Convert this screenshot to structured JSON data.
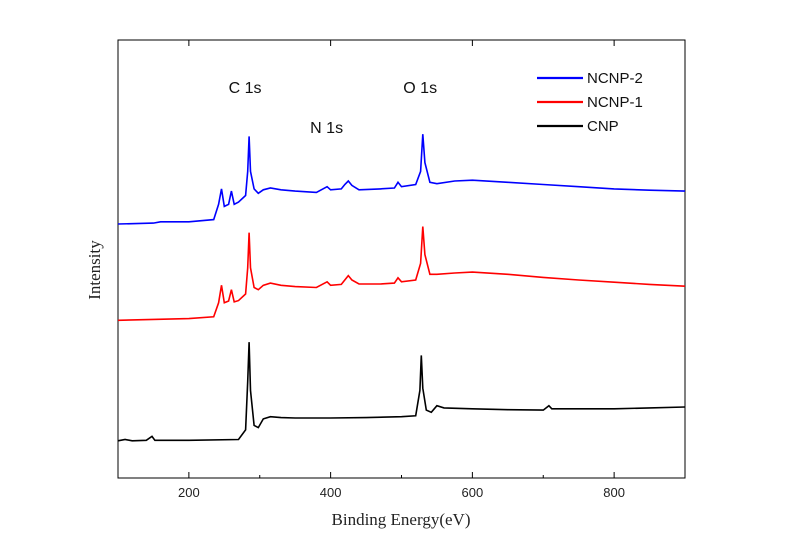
{
  "chart_data": {
    "type": "line",
    "title": "",
    "xlabel": "Binding Energy(eV)",
    "ylabel": "Intensity",
    "xlim": [
      100,
      900
    ],
    "ylim": [
      0,
      1
    ],
    "x_ticks": [
      200,
      400,
      600,
      800
    ],
    "y_ticks_shown": false,
    "grid": false,
    "legend_position": "top-right",
    "annotations": [
      {
        "text": "C 1s",
        "x": 285
      },
      {
        "text": "N 1s",
        "x": 400
      },
      {
        "text": "O 1s",
        "x": 532
      }
    ],
    "series": [
      {
        "name": "NCNP-2",
        "color": "#0000ff",
        "points": [
          [
            100,
            0.58
          ],
          [
            150,
            0.582
          ],
          [
            160,
            0.585
          ],
          [
            200,
            0.585
          ],
          [
            235,
            0.59
          ],
          [
            242,
            0.625
          ],
          [
            246,
            0.66
          ],
          [
            250,
            0.62
          ],
          [
            256,
            0.625
          ],
          [
            260,
            0.655
          ],
          [
            264,
            0.625
          ],
          [
            270,
            0.63
          ],
          [
            280,
            0.645
          ],
          [
            283,
            0.7
          ],
          [
            285,
            0.78
          ],
          [
            287,
            0.7
          ],
          [
            292,
            0.66
          ],
          [
            298,
            0.65
          ],
          [
            305,
            0.658
          ],
          [
            315,
            0.662
          ],
          [
            330,
            0.658
          ],
          [
            350,
            0.655
          ],
          [
            380,
            0.652
          ],
          [
            395,
            0.665
          ],
          [
            400,
            0.658
          ],
          [
            415,
            0.66
          ],
          [
            420,
            0.67
          ],
          [
            425,
            0.678
          ],
          [
            430,
            0.668
          ],
          [
            440,
            0.658
          ],
          [
            470,
            0.66
          ],
          [
            490,
            0.662
          ],
          [
            495,
            0.675
          ],
          [
            500,
            0.665
          ],
          [
            520,
            0.67
          ],
          [
            527,
            0.7
          ],
          [
            530,
            0.785
          ],
          [
            533,
            0.72
          ],
          [
            540,
            0.675
          ],
          [
            550,
            0.672
          ],
          [
            575,
            0.678
          ],
          [
            600,
            0.68
          ],
          [
            650,
            0.675
          ],
          [
            700,
            0.67
          ],
          [
            750,
            0.665
          ],
          [
            800,
            0.66
          ],
          [
            850,
            0.657
          ],
          [
            900,
            0.655
          ]
        ]
      },
      {
        "name": "NCNP-1",
        "color": "#ff0000",
        "points": [
          [
            100,
            0.36
          ],
          [
            150,
            0.362
          ],
          [
            200,
            0.364
          ],
          [
            235,
            0.368
          ],
          [
            242,
            0.4
          ],
          [
            246,
            0.44
          ],
          [
            250,
            0.4
          ],
          [
            256,
            0.404
          ],
          [
            260,
            0.43
          ],
          [
            264,
            0.402
          ],
          [
            270,
            0.405
          ],
          [
            280,
            0.42
          ],
          [
            283,
            0.48
          ],
          [
            285,
            0.56
          ],
          [
            287,
            0.48
          ],
          [
            292,
            0.435
          ],
          [
            298,
            0.43
          ],
          [
            305,
            0.44
          ],
          [
            315,
            0.445
          ],
          [
            330,
            0.44
          ],
          [
            350,
            0.437
          ],
          [
            380,
            0.435
          ],
          [
            395,
            0.448
          ],
          [
            400,
            0.44
          ],
          [
            415,
            0.442
          ],
          [
            420,
            0.452
          ],
          [
            425,
            0.462
          ],
          [
            430,
            0.452
          ],
          [
            440,
            0.443
          ],
          [
            470,
            0.443
          ],
          [
            490,
            0.445
          ],
          [
            495,
            0.457
          ],
          [
            500,
            0.448
          ],
          [
            520,
            0.452
          ],
          [
            527,
            0.49
          ],
          [
            530,
            0.574
          ],
          [
            533,
            0.51
          ],
          [
            540,
            0.465
          ],
          [
            550,
            0.465
          ],
          [
            575,
            0.468
          ],
          [
            600,
            0.47
          ],
          [
            650,
            0.465
          ],
          [
            700,
            0.458
          ],
          [
            750,
            0.452
          ],
          [
            800,
            0.447
          ],
          [
            850,
            0.442
          ],
          [
            900,
            0.438
          ]
        ]
      },
      {
        "name": "CNP",
        "color": "#000000",
        "points": [
          [
            100,
            0.085
          ],
          [
            110,
            0.088
          ],
          [
            120,
            0.085
          ],
          [
            140,
            0.086
          ],
          [
            148,
            0.095
          ],
          [
            152,
            0.086
          ],
          [
            200,
            0.086
          ],
          [
            270,
            0.088
          ],
          [
            280,
            0.11
          ],
          [
            283,
            0.22
          ],
          [
            285,
            0.31
          ],
          [
            287,
            0.2
          ],
          [
            292,
            0.12
          ],
          [
            298,
            0.115
          ],
          [
            305,
            0.135
          ],
          [
            315,
            0.14
          ],
          [
            330,
            0.138
          ],
          [
            350,
            0.137
          ],
          [
            400,
            0.137
          ],
          [
            450,
            0.138
          ],
          [
            500,
            0.14
          ],
          [
            520,
            0.142
          ],
          [
            526,
            0.2
          ],
          [
            528,
            0.28
          ],
          [
            530,
            0.205
          ],
          [
            535,
            0.155
          ],
          [
            542,
            0.15
          ],
          [
            550,
            0.165
          ],
          [
            560,
            0.16
          ],
          [
            600,
            0.158
          ],
          [
            650,
            0.156
          ],
          [
            700,
            0.155
          ],
          [
            708,
            0.165
          ],
          [
            712,
            0.158
          ],
          [
            750,
            0.158
          ],
          [
            800,
            0.158
          ],
          [
            850,
            0.16
          ],
          [
            900,
            0.162
          ]
        ]
      }
    ]
  }
}
